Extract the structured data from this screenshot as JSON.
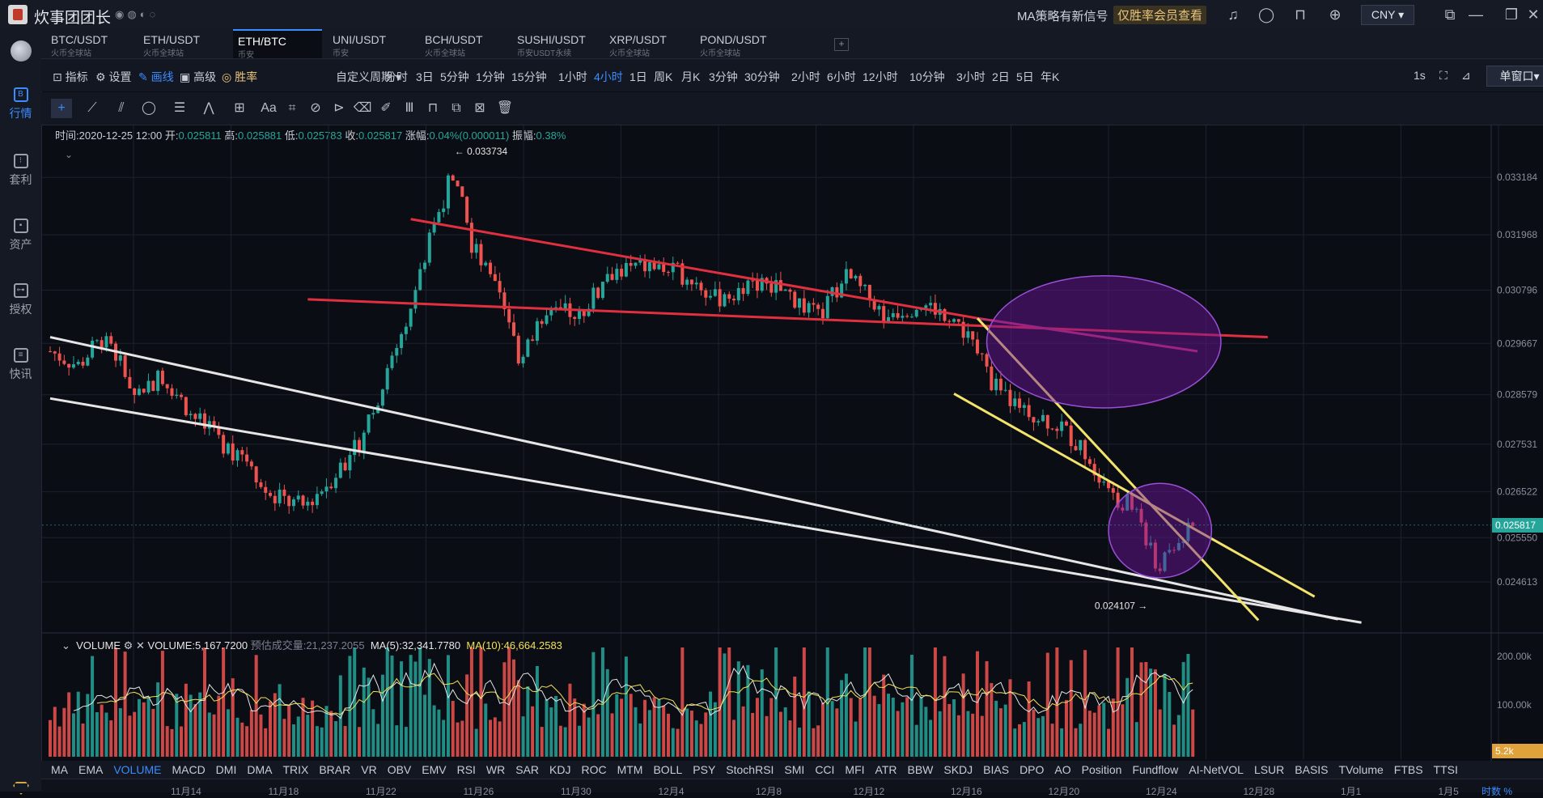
{
  "window": {
    "title": "炊事团团长",
    "signal_text": "MA策略有新信号",
    "signal_link": "仅胜率会员查看",
    "currency": "CNY"
  },
  "sidebar": {
    "items": [
      {
        "label": "行情",
        "icon": "chart-b-icon",
        "active": true
      },
      {
        "label": "套利",
        "icon": "arbitrage-icon",
        "active": false
      },
      {
        "label": "资产",
        "icon": "wallet-icon",
        "active": false
      },
      {
        "label": "授权",
        "icon": "key-icon",
        "active": false
      },
      {
        "label": "快讯",
        "icon": "news-icon",
        "active": false
      }
    ]
  },
  "tabs": [
    {
      "name": "BTC/USDT",
      "sub": "火币全球站"
    },
    {
      "name": "ETH/USDT",
      "sub": "火币全球站"
    },
    {
      "name": "ETH/BTC",
      "sub": "币安",
      "active": true
    },
    {
      "name": "UNI/USDT",
      "sub": "币安"
    },
    {
      "name": "BCH/USDT",
      "sub": "火币全球站"
    },
    {
      "name": "SUSHI/USDT",
      "sub": "币安USDT永续"
    },
    {
      "name": "XRP/USDT",
      "sub": "火币全球站"
    },
    {
      "name": "POND/USDT",
      "sub": "火币全球站"
    }
  ],
  "toolbar": {
    "indicators": "指标",
    "settings": "设置",
    "draw": "画线",
    "advanced": "高级",
    "winrate": "胜率",
    "custom_period": "自定义周期",
    "periods": [
      "分时",
      "3日",
      "5分钟",
      "1分钟",
      "15分钟",
      "1小时",
      "4小时",
      "1日",
      "周K",
      "月K",
      "3分钟",
      "30分钟",
      "2小时",
      "6小时",
      "12小时",
      "10分钟",
      "3小时",
      "2日",
      "5日",
      "年K"
    ],
    "active_period": "4小时",
    "refresh": "1s",
    "window_mode": "单窗口"
  },
  "ohlc": {
    "time_label": "时间:",
    "time": "2020-12-25 12:00",
    "open_label": "开:",
    "open": "0.025811",
    "high_label": "高:",
    "high": "0.025881",
    "low_label": "低:",
    "low": "0.025783",
    "close_label": "收:",
    "close": "0.025817",
    "change_label": "涨幅:",
    "change": "0.04%(0.000011)",
    "amp_label": "振幅:",
    "amp": "0.38%"
  },
  "volume_panel": {
    "title": "VOLUME",
    "volume": "VOLUME:5,167.7200",
    "estimate_label": "预估成交量:",
    "estimate": "21,237.2055",
    "ma5": "MA(5):32,341.7780",
    "ma10": "MA(10):46,664.2583",
    "axis": [
      "200.00k",
      "100.00k"
    ],
    "current_tag": "5.2k"
  },
  "indicators": [
    "MA",
    "EMA",
    "VOLUME",
    "MACD",
    "DMI",
    "DMA",
    "TRIX",
    "BRAR",
    "VR",
    "OBV",
    "EMV",
    "RSI",
    "WR",
    "SAR",
    "KDJ",
    "ROC",
    "MTM",
    "BOLL",
    "PSY",
    "StochRSI",
    "SMI",
    "CCI",
    "MFI",
    "ATR",
    "BBW",
    "SKDJ",
    "BIAS",
    "DPO",
    "AO",
    "Position",
    "Fundflow",
    "AI-NetVOL",
    "LSUR",
    "BASIS",
    "TVolume",
    "FTBS",
    "TTSI"
  ],
  "active_indicator": "VOLUME",
  "date_axis": [
    "11月14",
    "11月18",
    "11月22",
    "11月26",
    "11月30",
    "12月4",
    "12月8",
    "12月12",
    "12月16",
    "12月20",
    "12月24",
    "12月28",
    "1月1",
    "1月5"
  ],
  "axis_extra": [
    "时数",
    "%"
  ],
  "colors": {
    "up": "#26a69a",
    "down": "#ef5350",
    "accent": "#3b8cff",
    "gold": "#e8c47a"
  },
  "chart_data": {
    "type": "candlestick",
    "symbol": "ETH/BTC",
    "interval": "4小时",
    "y_ticks": [
      0.033184,
      0.031968,
      0.030796,
      0.029667,
      0.028579,
      0.027531,
      0.026522,
      0.02555,
      0.024613
    ],
    "y_tick_labels": [
      "0.033184",
      "0.031968",
      "0.030796",
      "0.029667",
      "0.028579",
      "0.027531",
      "0.026522",
      "0.025550",
      "0.024613"
    ],
    "ylim": [
      0.0236,
      0.0342
    ],
    "current_price": 0.025817,
    "current_price_label": "0.025817",
    "high_marker": {
      "value": 0.033734,
      "label": "← 0.033734"
    },
    "low_marker": {
      "value": 0.024107,
      "label": "0.024107 →"
    },
    "close_path": [
      {
        "x": 0,
        "y": 0.0295
      },
      {
        "x": 6,
        "y": 0.0292
      },
      {
        "x": 12,
        "y": 0.0299
      },
      {
        "x": 18,
        "y": 0.0286
      },
      {
        "x": 24,
        "y": 0.029
      },
      {
        "x": 30,
        "y": 0.0282
      },
      {
        "x": 36,
        "y": 0.0276
      },
      {
        "x": 42,
        "y": 0.0272
      },
      {
        "x": 48,
        "y": 0.0264
      },
      {
        "x": 54,
        "y": 0.0262
      },
      {
        "x": 60,
        "y": 0.0268
      },
      {
        "x": 66,
        "y": 0.0276
      },
      {
        "x": 72,
        "y": 0.029
      },
      {
        "x": 78,
        "y": 0.0308
      },
      {
        "x": 82,
        "y": 0.0322
      },
      {
        "x": 86,
        "y": 0.0333
      },
      {
        "x": 90,
        "y": 0.0318
      },
      {
        "x": 96,
        "y": 0.0306
      },
      {
        "x": 100,
        "y": 0.0294
      },
      {
        "x": 106,
        "y": 0.0302
      },
      {
        "x": 114,
        "y": 0.0304
      },
      {
        "x": 120,
        "y": 0.0312
      },
      {
        "x": 128,
        "y": 0.0313
      },
      {
        "x": 136,
        "y": 0.0311
      },
      {
        "x": 142,
        "y": 0.0306
      },
      {
        "x": 150,
        "y": 0.031
      },
      {
        "x": 158,
        "y": 0.0307
      },
      {
        "x": 164,
        "y": 0.0302
      },
      {
        "x": 170,
        "y": 0.0311
      },
      {
        "x": 178,
        "y": 0.0303
      },
      {
        "x": 186,
        "y": 0.0305
      },
      {
        "x": 192,
        "y": 0.0303
      },
      {
        "x": 196,
        "y": 0.0298
      },
      {
        "x": 202,
        "y": 0.0287
      },
      {
        "x": 210,
        "y": 0.0282
      },
      {
        "x": 216,
        "y": 0.0279
      },
      {
        "x": 222,
        "y": 0.0272
      },
      {
        "x": 228,
        "y": 0.0264
      },
      {
        "x": 232,
        "y": 0.0262
      },
      {
        "x": 236,
        "y": 0.0249
      },
      {
        "x": 240,
        "y": 0.0253
      },
      {
        "x": 244,
        "y": 0.0258
      }
    ],
    "x_count": 245,
    "trend_lines": [
      {
        "color": "#e03040",
        "from": [
          77,
          0.0323
        ],
        "to": [
          198,
          0.0302
        ]
      },
      {
        "color": "#e03040",
        "from": [
          55,
          0.0306
        ],
        "to": [
          260,
          0.0298
        ]
      },
      {
        "color": "#c0306a",
        "from": [
          198,
          0.0302
        ],
        "to": [
          245,
          0.0295
        ]
      },
      {
        "color": "#e6e6e6",
        "from": [
          0,
          0.0298
        ],
        "to": [
          275,
          0.02382
        ]
      },
      {
        "color": "#e6e6e6",
        "from": [
          0,
          0.0285
        ],
        "to": [
          280,
          0.02375
        ]
      },
      {
        "color": "#f2e46a",
        "from": [
          193,
          0.0286
        ],
        "to": [
          270,
          0.0243
        ]
      },
      {
        "color": "#f2e46a",
        "from": [
          198,
          0.0302
        ],
        "to": [
          258,
          0.0238
        ]
      }
    ],
    "ellipses": [
      {
        "center": [
          225,
          0.0297
        ],
        "rx": 25,
        "ry": 0.0014
      },
      {
        "center": [
          237,
          0.0257
        ],
        "rx": 11,
        "ry": 0.001
      }
    ]
  }
}
